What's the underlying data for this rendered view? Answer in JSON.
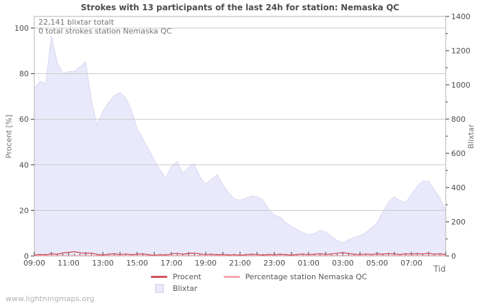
{
  "page": {
    "watermark": "www.lightningmaps.org"
  },
  "chart_data": {
    "type": "area",
    "title": "Strokes with 13 participants of the last 24h for station: Nemaska QC",
    "annotations": [
      "22,141 blixtar totalt",
      "0 total strokes station Nemaska QC"
    ],
    "x_axis": {
      "label": "Tid",
      "start": "09:00",
      "step_minutes": 20,
      "points": 73,
      "tick_labels": [
        "09:00",
        "11:00",
        "13:00",
        "15:00",
        "17:00",
        "19:00",
        "21:00",
        "23:00",
        "01:00",
        "03:00",
        "05:00",
        "07:00"
      ],
      "label_every_hours": 2,
      "minor_tick_minutes": 20
    },
    "y_left": {
      "label": "Procent  [%]",
      "ticks": [
        0,
        20,
        40,
        60,
        80,
        100
      ],
      "range": [
        0,
        105
      ]
    },
    "y_right": {
      "label": "Blixtar",
      "major_ticks": [
        0,
        200,
        400,
        600,
        800,
        1000,
        1200,
        1400
      ],
      "minor_step": 100,
      "range": [
        0,
        1400
      ]
    },
    "grid": {
      "gridline_color": "#c9c9c9",
      "frame_color": "#b3b3b3",
      "tick_color": "#333333",
      "on": true
    },
    "legend_position": "bottom-center",
    "series": [
      {
        "name": "Procent",
        "type": "line",
        "axis": "left",
        "color": "#d14f5a",
        "values": [
          0.4,
          0.7,
          0.5,
          1.0,
          0.8,
          1.3,
          1.6,
          1.9,
          1.4,
          1.1,
          1.3,
          0.7,
          0.4,
          0.8,
          1.0,
          0.6,
          0.9,
          0.6,
          0.8,
          1.0,
          0.5,
          0.3,
          0.6,
          0.4,
          0.9,
          1.2,
          0.8,
          1.1,
          1.3,
          0.9,
          0.6,
          0.8,
          0.5,
          0.7,
          0.4,
          0.6,
          0.3,
          0.5,
          0.8,
          0.6,
          0.4,
          0.7,
          0.5,
          0.8,
          0.6,
          0.4,
          0.7,
          0.9,
          0.6,
          0.8,
          1.0,
          0.7,
          0.9,
          1.2,
          1.5,
          1.1,
          0.8,
          0.6,
          0.9,
          0.7,
          1.0,
          0.8,
          1.1,
          0.9,
          0.7,
          1.0,
          0.8,
          1.1,
          0.9,
          1.2,
          0.8,
          1.0,
          0.6
        ]
      },
      {
        "name": "Percentage station Nemaska QC",
        "type": "line",
        "axis": "left",
        "color": "#f2a6ad",
        "constant": 0
      },
      {
        "name": "Blixtar",
        "type": "area",
        "axis": "right",
        "color": "#e9e9fb",
        "edge_color": "#d9d9f2",
        "values": [
          980,
          1022,
          1008,
          1288,
          1134,
          1064,
          1078,
          1078,
          1106,
          1134,
          910,
          763,
          847,
          896,
          938,
          956,
          924,
          854,
          742,
          686,
          623,
          560,
          504,
          455,
          525,
          553,
          483,
          518,
          539,
          462,
          420,
          448,
          476,
          416,
          371,
          333,
          326,
          336,
          350,
          347,
          329,
          273,
          238,
          228,
          196,
          172,
          154,
          136,
          126,
          130,
          151,
          140,
          116,
          90,
          76,
          95,
          109,
          118,
          136,
          164,
          193,
          259,
          316,
          344,
          325,
          312,
          361,
          406,
          437,
          437,
          389,
          336,
          269
        ]
      }
    ]
  }
}
